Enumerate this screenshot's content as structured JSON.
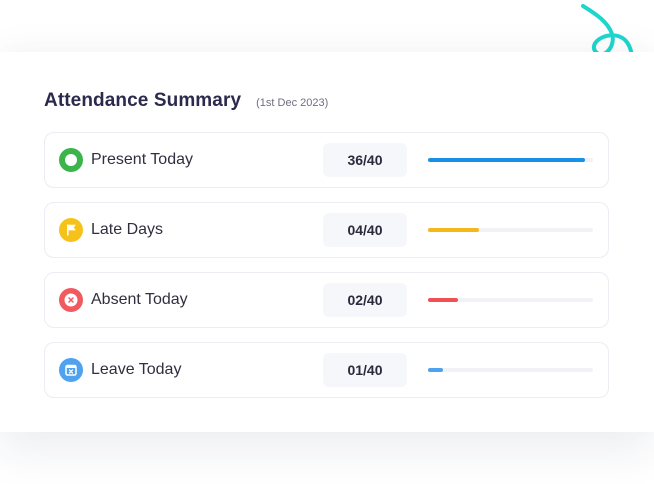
{
  "header": {
    "title": "Attendance Summary",
    "date": "(1st Dec 2023)"
  },
  "rows": [
    {
      "label": "Present Today",
      "value": "36/40",
      "progress": 0.95,
      "color": "#1890e8",
      "icon_bg": "#3bb54a",
      "icon": "circle-icon"
    },
    {
      "label": "Late Days",
      "value": "04/40",
      "progress": 0.31,
      "color": "#f6b718",
      "icon_bg": "#f6c21a",
      "icon": "flag-icon"
    },
    {
      "label": "Absent Today",
      "value": "02/40",
      "progress": 0.18,
      "color": "#f04f56",
      "icon_bg": "#f15a5f",
      "icon": "close-icon"
    },
    {
      "label": "Leave Today",
      "value": "01/40",
      "progress": 0.09,
      "color": "#4ea2ef",
      "icon_bg": "#4ea2ef",
      "icon": "calendar-icon"
    }
  ],
  "decoration": {
    "swirl_color": "#1fd6cf"
  }
}
